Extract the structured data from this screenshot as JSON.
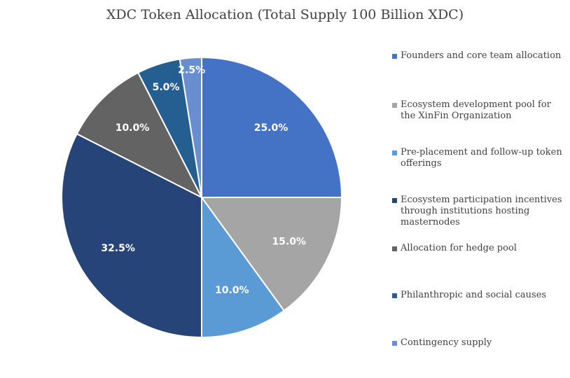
{
  "chart_data": {
    "type": "pie",
    "title": "XDC Token Allocation (Total Supply 100 Billion XDC)",
    "series": [
      {
        "values": [
          25.0,
          15.0,
          10.0,
          32.5,
          10.0,
          5.0,
          2.5
        ],
        "labels": [
          "25.0%",
          "15.0%",
          "10.0%",
          "32.5%",
          "10.0%",
          "5.0%",
          "2.5%"
        ],
        "categories": [
          "Founders and core team allocation",
          "Ecosystem development pool for the XinFin Organization",
          "Pre-placement and follow-up token offerings",
          "Ecosystem participation incentives through institutions hosting masternodes",
          "Allocation for hedge pool",
          "Philanthropic and social causes",
          "Contingency supply"
        ],
        "colors": [
          "#4472c4",
          "#a5a5a5",
          "#5b9bd5",
          "#264478",
          "#636363",
          "#255e91",
          "#698ed0"
        ]
      }
    ],
    "legend_position": "right",
    "start_angle": "12 o'clock, clockwise"
  },
  "legend": {
    "items": [
      {
        "label": "Founders and core team allocation",
        "color": "#4472c4"
      },
      {
        "label": "Ecosystem development pool for the XinFin Organization",
        "color": "#a5a5a5"
      },
      {
        "label": "Pre-placement and follow-up token offerings",
        "color": "#5b9bd5"
      },
      {
        "label": "Ecosystem participation incentives through institutions hosting masternodes",
        "color": "#264478"
      },
      {
        "label": "Allocation for hedge pool",
        "color": "#636363"
      },
      {
        "label": "Philanthropic and social causes",
        "color": "#255e91"
      },
      {
        "label": "Contingency supply",
        "color": "#698ed0"
      }
    ]
  }
}
